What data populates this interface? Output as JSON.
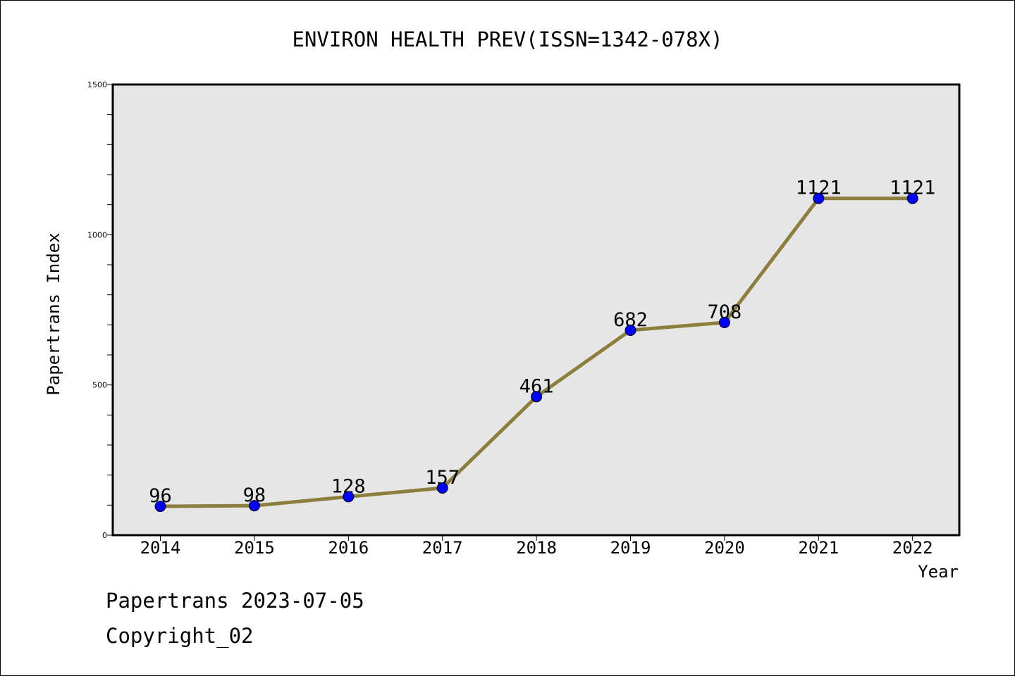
{
  "chart_data": {
    "type": "line",
    "title": "ENVIRON HEALTH PREV(ISSN=1342-078X)",
    "xlabel": "Year",
    "ylabel": "Papertrans Index",
    "categories": [
      "2014",
      "2015",
      "2016",
      "2017",
      "2018",
      "2019",
      "2020",
      "2021",
      "2022"
    ],
    "series": [
      {
        "values": [
          96,
          98,
          128,
          157,
          461,
          682,
          708,
          1121,
          1121
        ]
      }
    ],
    "ylim": [
      0,
      1500
    ],
    "yticks": [
      "0",
      "500",
      "1000",
      "1500"
    ],
    "data_labels": [
      "96",
      "98",
      "128",
      "157",
      "461",
      "682",
      "708",
      "1121",
      "1121"
    ],
    "grid": false,
    "colors": {
      "line": "#8c7f3e",
      "marker": "#0000ff",
      "plot_background": "#e6e6e6"
    }
  },
  "footer": {
    "date_line": "Papertrans 2023-07-05",
    "copyright_line": "Copyright_02"
  }
}
